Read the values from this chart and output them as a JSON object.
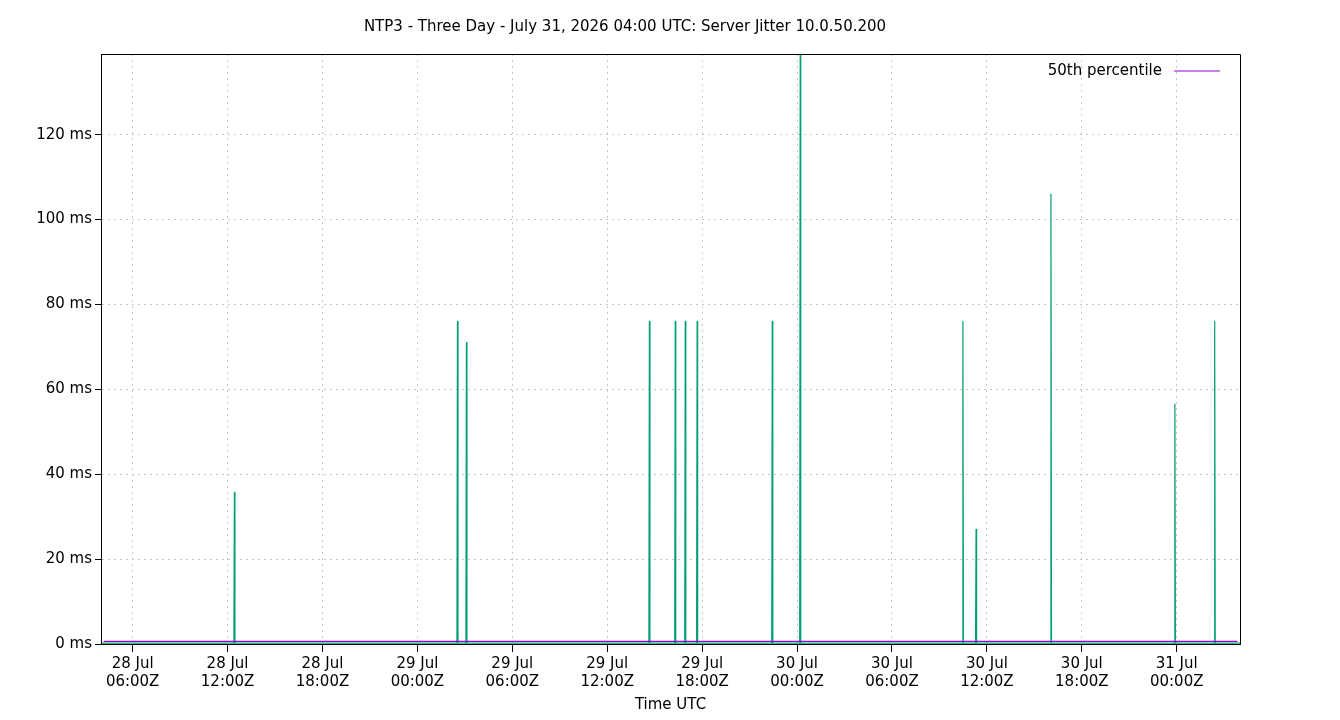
{
  "chart_data": {
    "type": "line",
    "title": "NTP3 - Three Day - July 31, 2026 04:00 UTC: Server Jitter 10.0.50.200",
    "xlabel": "Time UTC",
    "xlim": [
      "2026-07-28T04:00",
      "2026-07-31T04:00"
    ],
    "xticks": [
      {
        "value": "2026-07-28T06:00",
        "label": "28 Jul\n06:00Z"
      },
      {
        "value": "2026-07-28T12:00",
        "label": "28 Jul\n12:00Z"
      },
      {
        "value": "2026-07-28T18:00",
        "label": "28 Jul\n18:00Z"
      },
      {
        "value": "2026-07-29T00:00",
        "label": "29 Jul\n00:00Z"
      },
      {
        "value": "2026-07-29T06:00",
        "label": "29 Jul\n06:00Z"
      },
      {
        "value": "2026-07-29T12:00",
        "label": "29 Jul\n12:00Z"
      },
      {
        "value": "2026-07-29T18:00",
        "label": "29 Jul\n18:00Z"
      },
      {
        "value": "2026-07-30T00:00",
        "label": "30 Jul\n00:00Z"
      },
      {
        "value": "2026-07-30T06:00",
        "label": "30 Jul\n06:00Z"
      },
      {
        "value": "2026-07-30T12:00",
        "label": "30 Jul\n12:00Z"
      },
      {
        "value": "2026-07-30T18:00",
        "label": "30 Jul\n18:00Z"
      },
      {
        "value": "2026-07-31T00:00",
        "label": "31 Jul\n00:00Z"
      }
    ],
    "ylim": [
      0,
      139
    ],
    "yticks": [
      {
        "value": 0,
        "label": "0 ms"
      },
      {
        "value": 20,
        "label": "20 ms"
      },
      {
        "value": 40,
        "label": "40 ms"
      },
      {
        "value": 60,
        "label": "60 ms"
      },
      {
        "value": 80,
        "label": "80 ms"
      },
      {
        "value": 100,
        "label": "100 ms"
      },
      {
        "value": 120,
        "label": "120 ms"
      }
    ],
    "grid": true,
    "legend": "top right",
    "marker": "none",
    "line_style": "solid",
    "series": [
      {
        "color": "#009e73",
        "x": [
          "2026-07-28T04:00",
          "2026-07-28T12:24",
          "2026-07-28T12:26",
          "2026-07-28T12:28",
          "2026-07-29T02:30",
          "2026-07-29T02:32",
          "2026-07-29T02:34",
          "2026-07-29T03:04",
          "2026-07-29T03:06",
          "2026-07-29T03:08",
          "2026-07-29T14:38",
          "2026-07-29T14:40",
          "2026-07-29T14:42",
          "2026-07-29T16:16",
          "2026-07-29T16:18",
          "2026-07-29T16:20",
          "2026-07-29T16:54",
          "2026-07-29T16:56",
          "2026-07-29T16:58",
          "2026-07-29T17:39",
          "2026-07-29T17:41",
          "2026-07-29T17:43",
          "2026-07-29T22:24",
          "2026-07-29T22:26",
          "2026-07-29T22:28",
          "2026-07-30T00:10",
          "2026-07-30T00:12",
          "2026-07-30T00:14",
          "2026-07-30T10:27",
          "2026-07-30T10:29",
          "2026-07-30T10:31",
          "2026-07-30T11:17",
          "2026-07-30T11:19",
          "2026-07-30T11:21",
          "2026-07-30T16:01",
          "2026-07-30T16:03",
          "2026-07-30T16:05",
          "2026-07-30T23:51",
          "2026-07-30T23:53",
          "2026-07-30T23:55",
          "2026-07-31T02:22",
          "2026-07-31T02:24",
          "2026-07-31T02:26",
          "2026-07-31T04:00"
        ],
        "values": [
          0.2,
          0.2,
          35.7,
          0.2,
          0.2,
          76,
          0.2,
          0.2,
          71,
          0.2,
          0.2,
          76,
          0.2,
          0.2,
          76,
          0.2,
          0.2,
          76,
          0.2,
          0.2,
          76,
          0.2,
          0.2,
          76,
          0.2,
          0.2,
          139,
          0.2,
          0.2,
          76,
          0.2,
          0.2,
          27,
          0.2,
          0.2,
          106,
          0.2,
          0.2,
          56.5,
          0.2,
          0.2,
          76,
          0.2,
          0.2
        ]
      },
      {
        "name": "50th percentile",
        "color": "#9400d3",
        "x": [
          "2026-07-28T04:10",
          "2026-07-31T03:50"
        ],
        "values": [
          0.6,
          0.6
        ]
      }
    ]
  }
}
